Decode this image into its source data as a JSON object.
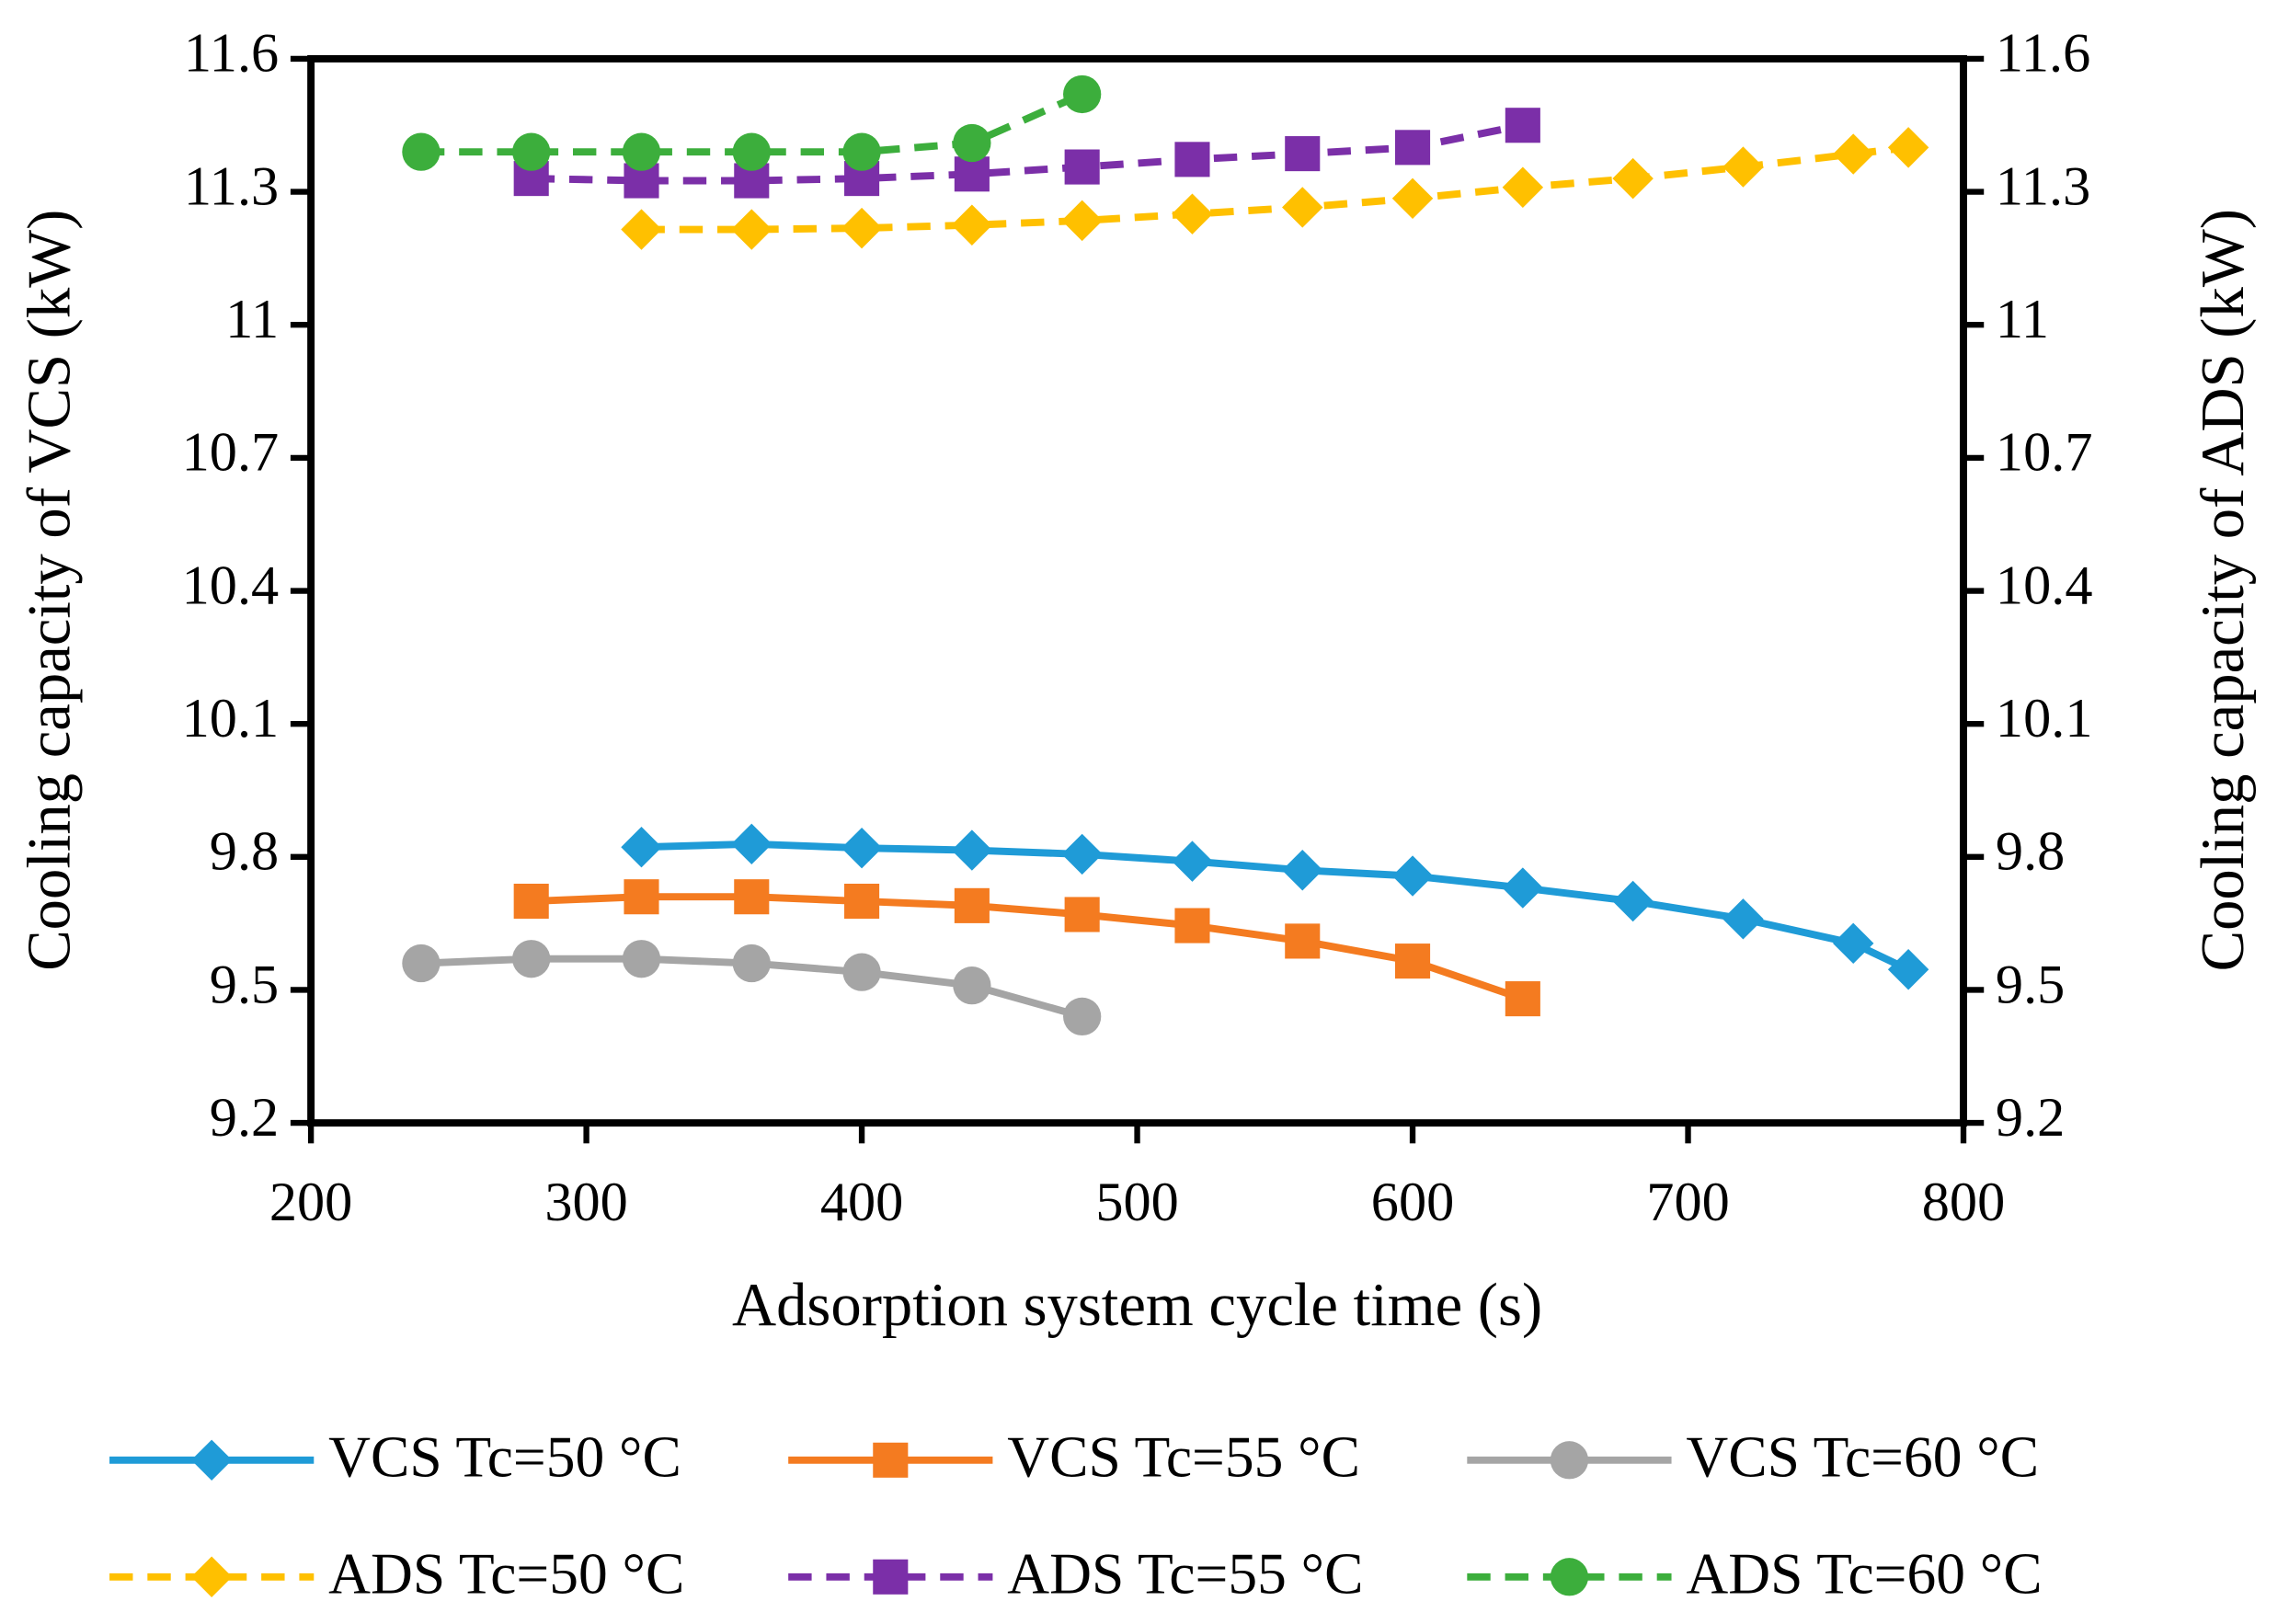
{
  "chart_data": {
    "type": "line",
    "x_label": "Adsorption system cycle time (s)",
    "y_label": "Cooling capacity of VCS (kW)",
    "y2_label": "Cooling capacity of ADS (kW)",
    "xlim": [
      200,
      800
    ],
    "xticks": [
      200,
      300,
      400,
      500,
      600,
      700,
      800
    ],
    "ylim": [
      9.2,
      11.6
    ],
    "yticks": [
      9.2,
      9.5,
      9.8,
      10.1,
      10.4,
      10.7,
      11,
      11.3,
      11.6
    ],
    "y2lim": [
      9.2,
      11.6
    ],
    "y2ticks": [
      9.2,
      9.5,
      9.8,
      10.1,
      10.4,
      10.7,
      11,
      11.3,
      11.6
    ],
    "legend": "bottom",
    "series": [
      {
        "name": "VCS Tc=50 °C",
        "color": "#1f9bd7",
        "marker": "diamond",
        "dashed": false,
        "x": [
          320,
          360,
          400,
          440,
          480,
          520,
          560,
          600,
          640,
          680,
          720,
          760,
          780
        ],
        "values": [
          9.822,
          9.829,
          9.82,
          9.815,
          9.806,
          9.79,
          9.77,
          9.757,
          9.73,
          9.7,
          9.66,
          9.605,
          9.546
        ]
      },
      {
        "name": "VCS Tc=55 °C",
        "color": "#f47b20",
        "marker": "square",
        "dashed": false,
        "x": [
          280,
          320,
          360,
          400,
          440,
          480,
          520,
          560,
          600,
          640
        ],
        "values": [
          9.7,
          9.71,
          9.71,
          9.7,
          9.69,
          9.67,
          9.645,
          9.61,
          9.565,
          9.48
        ]
      },
      {
        "name": "VCS Tc=60 °C",
        "color": "#a5a5a5",
        "marker": "circle",
        "dashed": false,
        "x": [
          240,
          280,
          320,
          360,
          400,
          440,
          480
        ],
        "values": [
          9.56,
          9.57,
          9.57,
          9.56,
          9.54,
          9.51,
          9.44
        ]
      },
      {
        "name": "ADS Tc=50 °C",
        "color": "#ffc000",
        "marker": "diamond",
        "dashed": true,
        "axis": "y2",
        "x": [
          320,
          360,
          400,
          440,
          480,
          520,
          560,
          600,
          640,
          680,
          720,
          760,
          780
        ],
        "values": [
          11.215,
          11.215,
          11.218,
          11.225,
          11.235,
          11.25,
          11.265,
          11.285,
          11.31,
          11.33,
          11.356,
          11.385,
          11.4
        ]
      },
      {
        "name": "ADS Tc=55 °C",
        "color": "#7b2fa8",
        "marker": "square",
        "dashed": true,
        "axis": "y2",
        "x": [
          280,
          320,
          360,
          400,
          440,
          480,
          520,
          560,
          600,
          640
        ],
        "values": [
          11.33,
          11.325,
          11.325,
          11.33,
          11.34,
          11.356,
          11.373,
          11.386,
          11.4,
          11.45
        ]
      },
      {
        "name": "ADS Tc=60 °C",
        "color": "#3cae3c",
        "marker": "circle",
        "dashed": true,
        "axis": "y2",
        "x": [
          240,
          280,
          320,
          360,
          400,
          440,
          480
        ],
        "values": [
          11.39,
          11.39,
          11.39,
          11.39,
          11.39,
          11.41,
          11.52
        ]
      }
    ]
  }
}
